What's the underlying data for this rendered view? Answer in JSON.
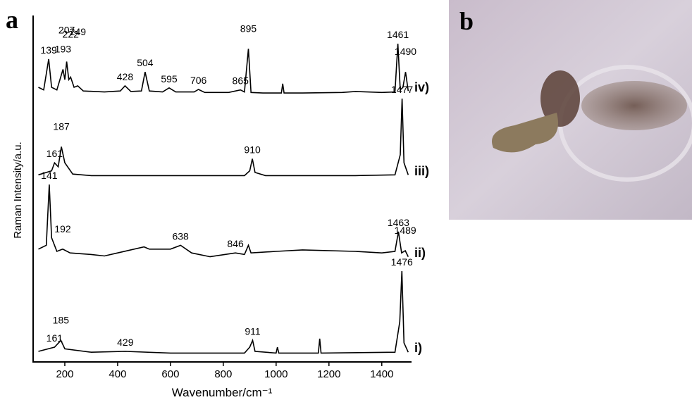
{
  "chart_data": {
    "type": "line",
    "panel_label": "a",
    "xlabel": "Wavenumber/cm⁻¹",
    "ylabel": "Raman Intensity/a.u.",
    "xlim": [
      80,
      1510
    ],
    "xticks": [
      200,
      400,
      600,
      800,
      1000,
      1200,
      1400
    ],
    "ylim": [
      0,
      1
    ],
    "series": [
      {
        "name": "iv)",
        "color": "#000000",
        "x": [
          100,
          120,
          139,
          150,
          170,
          193,
          200,
          207,
          215,
          222,
          235,
          249,
          270,
          350,
          410,
          428,
          450,
          490,
          504,
          520,
          570,
          595,
          620,
          690,
          706,
          730,
          820,
          865,
          880,
          895,
          905,
          950,
          1020,
          1025,
          1030,
          1100,
          1250,
          1300,
          1400,
          1450,
          1461,
          1470,
          1480,
          1490,
          1500
        ],
        "values": [
          0.15,
          0.1,
          0.7,
          0.15,
          0.1,
          0.5,
          0.3,
          0.65,
          0.3,
          0.35,
          0.15,
          0.18,
          0.08,
          0.06,
          0.08,
          0.18,
          0.07,
          0.08,
          0.45,
          0.08,
          0.06,
          0.14,
          0.06,
          0.06,
          0.11,
          0.05,
          0.05,
          0.1,
          0.06,
          0.9,
          0.05,
          0.04,
          0.04,
          0.22,
          0.04,
          0.04,
          0.05,
          0.07,
          0.05,
          0.06,
          1,
          0.1,
          0.15,
          0.45,
          0.08
        ],
        "peaks": [
          139,
          193,
          207,
          222,
          249,
          428,
          504,
          595,
          706,
          865,
          895,
          1461,
          1490
        ]
      },
      {
        "name": "iii)",
        "color": "#000000",
        "x": [
          100,
          150,
          161,
          175,
          187,
          200,
          230,
          300,
          600,
          880,
          900,
          910,
          920,
          960,
          1300,
          1450,
          1470,
          1477,
          1484,
          1500
        ],
        "values": [
          0.05,
          0.1,
          0.2,
          0.15,
          0.4,
          0.2,
          0.06,
          0.04,
          0.04,
          0.04,
          0.1,
          0.25,
          0.08,
          0.04,
          0.04,
          0.05,
          0.3,
          1,
          0.2,
          0.05
        ],
        "peaks": [
          161,
          187,
          910,
          1477
        ]
      },
      {
        "name": "ii)",
        "color": "#000000",
        "x": [
          100,
          130,
          141,
          150,
          170,
          192,
          220,
          300,
          350,
          400,
          500,
          520,
          600,
          638,
          680,
          750,
          846,
          880,
          895,
          905,
          1000,
          1100,
          1300,
          1400,
          1450,
          1463,
          1475,
          1489,
          1500
        ],
        "values": [
          0.15,
          0.2,
          1,
          0.3,
          0.12,
          0.15,
          0.1,
          0.08,
          0.06,
          0.1,
          0.18,
          0.15,
          0.15,
          0.2,
          0.1,
          0.05,
          0.1,
          0.08,
          0.2,
          0.1,
          0.12,
          0.14,
          0.12,
          0.1,
          0.12,
          0.38,
          0.1,
          0.13,
          0.05
        ],
        "peaks": [
          141,
          192,
          638,
          846,
          1463,
          1489
        ]
      },
      {
        "name": "i)",
        "color": "#000000",
        "x": [
          100,
          161,
          185,
          200,
          300,
          429,
          600,
          880,
          900,
          911,
          920,
          1000,
          1005,
          1010,
          1160,
          1165,
          1170,
          1450,
          1468,
          1476,
          1484,
          1500
        ],
        "values": [
          0.05,
          0.1,
          0.18,
          0.08,
          0.04,
          0.05,
          0.03,
          0.03,
          0.1,
          0.18,
          0.05,
          0.03,
          0.1,
          0.03,
          0.03,
          0.2,
          0.03,
          0.04,
          0.4,
          1,
          0.15,
          0.04
        ],
        "peaks": [
          161,
          185,
          429,
          911,
          1476
        ]
      }
    ]
  },
  "image": {
    "label": "b"
  }
}
